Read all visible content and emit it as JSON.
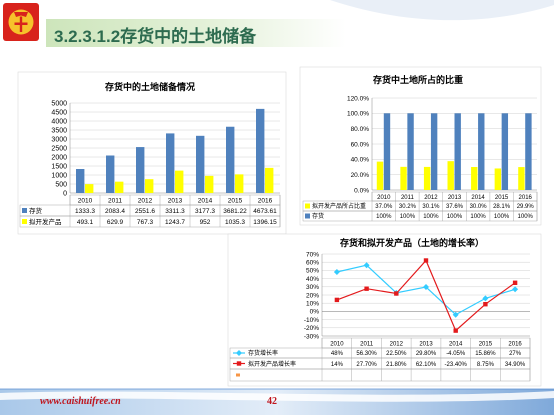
{
  "header": {
    "title": "3.2.3.1.2存货中的土地储备"
  },
  "footer": {
    "url": "www.caishuifree.cn",
    "page_number": "42"
  },
  "theme": {
    "title_color": "#2d6b4f",
    "footer_color": "#c0141b",
    "logo_color": "#d8231c",
    "logo_emblem_color": "#f6c22b"
  },
  "chart_data": [
    {
      "type": "bar",
      "title": "存货中的土地储备情况",
      "categories": [
        "2010",
        "2011",
        "2012",
        "2013",
        "2014",
        "2015",
        "2016"
      ],
      "ylim": [
        0,
        5000
      ],
      "yticks": [
        "5000",
        "4500",
        "4000",
        "3500",
        "3000",
        "2500",
        "2000",
        "1500",
        "1000",
        "500",
        "0"
      ],
      "grid": true,
      "legend": "bottom",
      "series": [
        {
          "name": "存货",
          "color": "#4f81bd",
          "values": [
            1333.3,
            2083.4,
            2551.6,
            3311.3,
            3177.3,
            3681.22,
            4673.61
          ],
          "labels": [
            "1333.3",
            "2083.4",
            "2551.6",
            "3311.3",
            "3177.3",
            "3681.22",
            "4673.61"
          ]
        },
        {
          "name": "拟开发产品",
          "color": "#ffff00",
          "values": [
            493.1,
            629.9,
            767.3,
            1243.7,
            952,
            1035.3,
            1396.15
          ],
          "labels": [
            "493.1",
            "629.9",
            "767.3",
            "1243.7",
            "952",
            "1035.3",
            "1396.15"
          ]
        }
      ]
    },
    {
      "type": "bar",
      "title": "存货中土地所占的比重",
      "categories": [
        "2010",
        "2011",
        "2012",
        "2013",
        "2014",
        "2015",
        "2016"
      ],
      "ylim": [
        0,
        120
      ],
      "yticks": [
        "120.0%",
        "100.0%",
        "80.0%",
        "60.0%",
        "40.0%",
        "20.0%",
        "0.0%"
      ],
      "grid": true,
      "legend": "bottom",
      "series": [
        {
          "name": "拟开发产品所占比重",
          "color": "#ffff00",
          "values": [
            37.0,
            30.2,
            30.1,
            37.6,
            30.0,
            28.1,
            29.9
          ],
          "labels": [
            "37.0%",
            "30.2%",
            "30.1%",
            "37.6%",
            "30.0%",
            "28.1%",
            "29.9%"
          ]
        },
        {
          "name": "存货",
          "color": "#4f81bd",
          "values": [
            100,
            100,
            100,
            100,
            100,
            100,
            100
          ],
          "labels": [
            "100%",
            "100%",
            "100%",
            "100%",
            "100%",
            "100%",
            "100%"
          ]
        }
      ]
    },
    {
      "type": "line",
      "title": "存货和拟开发产品（土地的增长率）",
      "categories": [
        "2010",
        "2011",
        "2012",
        "2013",
        "2014",
        "2015",
        "2016"
      ],
      "ylim": [
        -30,
        70
      ],
      "yticks": [
        "70%",
        "60%",
        "50%",
        "40%",
        "30%",
        "20%",
        "10%",
        "0%",
        "-10%",
        "-20%",
        "-30%"
      ],
      "grid": true,
      "legend": "bottom",
      "series": [
        {
          "name": "存货增长率",
          "color": "#33ccff",
          "marker": "diamond",
          "values": [
            48,
            56.3,
            22.5,
            29.8,
            -4.05,
            15.86,
            27
          ],
          "labels": [
            "48%",
            "56.30%",
            "22.50%",
            "29.80%",
            "-4.05%",
            "15.86%",
            "27%"
          ]
        },
        {
          "name": "拟开发产品增长率",
          "color": "#e31a1c",
          "marker": "square",
          "values": [
            14,
            27.7,
            21.8,
            62.1,
            -23.4,
            8.75,
            34.9
          ],
          "labels": [
            "14%",
            "27.70%",
            "21.80%",
            "62.10%",
            "-23.40%",
            "8.75%",
            "34.90%"
          ]
        }
      ]
    }
  ]
}
